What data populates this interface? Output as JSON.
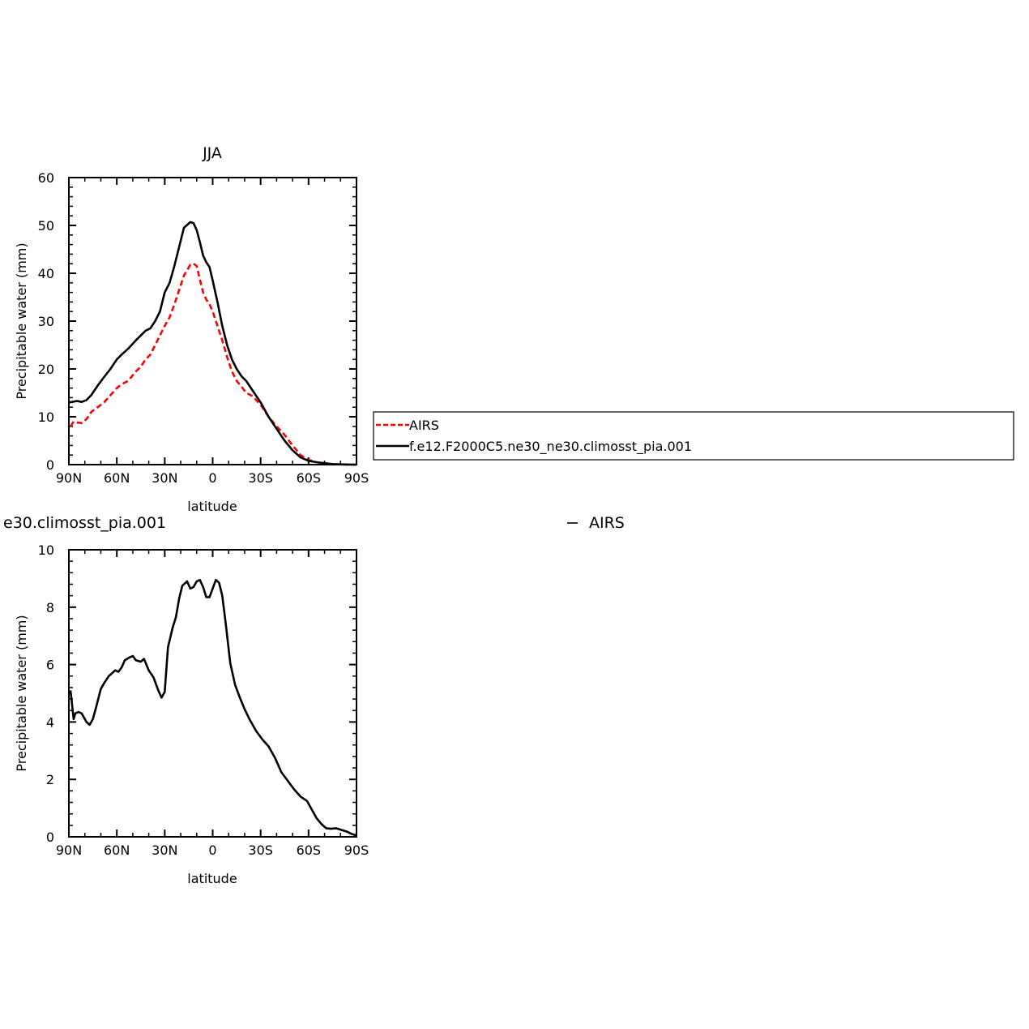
{
  "chart_data": [
    {
      "type": "line",
      "title": "JJA",
      "xlabel": "latitude",
      "ylabel": "Precipitable water (mm)",
      "xlim": [
        90,
        -90
      ],
      "ylim": [
        0,
        60
      ],
      "xticks": [
        90,
        60,
        30,
        0,
        -30,
        -60,
        -90
      ],
      "xtick_labels": [
        "90N",
        "60N",
        "30N",
        "0",
        "30S",
        "60S",
        "90S"
      ],
      "yticks": [
        0,
        10,
        20,
        30,
        40,
        50,
        60
      ],
      "ytick_labels": [
        "0",
        "10",
        "20",
        "30",
        "40",
        "50",
        "60"
      ],
      "legend_position": "right",
      "series": [
        {
          "name": "AIRS",
          "color": "#ff0000",
          "dash": "dashed",
          "x": [
            89,
            87,
            85,
            82,
            79,
            76,
            72,
            68,
            64,
            60,
            57,
            53,
            48,
            45,
            42,
            39,
            36,
            33,
            30,
            27,
            24,
            21,
            18,
            14,
            12,
            10,
            8,
            6,
            4,
            2,
            0,
            -3,
            -6,
            -9,
            -12,
            -15,
            -18,
            -21,
            -25,
            -30,
            -35,
            -40,
            -45,
            -50,
            -55,
            -60,
            -65,
            -70,
            -75,
            -80,
            -85,
            -90
          ],
          "y": [
            8,
            9,
            8.8,
            8.7,
            9.5,
            11,
            12,
            13,
            14.5,
            16,
            16.8,
            17.5,
            19.5,
            20.5,
            22,
            23,
            25,
            27,
            29,
            30.8,
            33.5,
            36.5,
            39.5,
            41.8,
            42,
            41.5,
            38.7,
            36,
            34.5,
            33.5,
            32,
            29,
            26,
            22.5,
            19.5,
            17.5,
            16.3,
            15,
            14.3,
            12.5,
            10,
            8,
            6.2,
            4,
            2,
            1,
            0.5,
            0.2,
            0.1,
            0.05,
            0,
            0
          ]
        },
        {
          "name": "f.e12.F2000C5.ne30_ne30.climosst_pia.001",
          "color": "#000000",
          "dash": "solid",
          "x": [
            90,
            88,
            85,
            82,
            79,
            76,
            72,
            68,
            64,
            60,
            57,
            53,
            48,
            45,
            42,
            39,
            36,
            33,
            30,
            27,
            24,
            21,
            18,
            14,
            12,
            10,
            8,
            6,
            4,
            2,
            0,
            -3,
            -6,
            -9,
            -12,
            -15,
            -18,
            -21,
            -25,
            -30,
            -35,
            -40,
            -45,
            -50,
            -55,
            -60,
            -65,
            -70,
            -75,
            -80,
            -85,
            -90
          ],
          "y": [
            13,
            13.1,
            13.3,
            13.1,
            13.5,
            14.5,
            16.5,
            18.3,
            20,
            22,
            23,
            24.2,
            26,
            27,
            28,
            28.5,
            30,
            32,
            36,
            38,
            41.5,
            45.5,
            49.5,
            50.7,
            50.5,
            49,
            46.5,
            43.7,
            42.3,
            41.3,
            38.5,
            34,
            29,
            25,
            22,
            20,
            18.5,
            17.5,
            15.5,
            13,
            10,
            7.5,
            5,
            3,
            1.5,
            0.8,
            0.5,
            0.3,
            0.1,
            0.05,
            0.02,
            0
          ]
        }
      ]
    },
    {
      "type": "line",
      "title": "",
      "partial_title": "e30.climosst_pia.001",
      "partial_legend": "AIRS",
      "xlabel": "latitude",
      "ylabel": "Precipitable water (mm)",
      "xlim": [
        90,
        -90
      ],
      "ylim": [
        0,
        10
      ],
      "xticks": [
        90,
        60,
        30,
        0,
        -30,
        -60,
        -90
      ],
      "xtick_labels": [
        "90N",
        "60N",
        "30N",
        "0",
        "30S",
        "60S",
        "90S"
      ],
      "yticks": [
        0,
        2,
        4,
        6,
        8,
        10
      ],
      "ytick_labels": [
        "0",
        "2",
        "4",
        "6",
        "8",
        "10"
      ],
      "series": [
        {
          "color": "#000000",
          "dash": "solid",
          "x": [
            89,
            87,
            86,
            84,
            82,
            79,
            77,
            75,
            73,
            70,
            68,
            65,
            61,
            59,
            57,
            55,
            52,
            50,
            48,
            45,
            43,
            40,
            37,
            34,
            32,
            30,
            28,
            25,
            23,
            21,
            19,
            16,
            14,
            12,
            10,
            8,
            6,
            4,
            2,
            0,
            -2,
            -4,
            -6,
            -8,
            -11,
            -14,
            -17,
            -20,
            -23,
            -27,
            -31,
            -35,
            -39,
            -43,
            -47,
            -51,
            -55,
            -59,
            -62,
            -65,
            -68,
            -71,
            -74,
            -77,
            -80,
            -84,
            -87,
            -90
          ],
          "y": [
            5.1,
            4.1,
            4.3,
            4.35,
            4.3,
            4,
            3.9,
            4.1,
            4.5,
            5.15,
            5.35,
            5.6,
            5.8,
            5.75,
            5.9,
            6.15,
            6.25,
            6.3,
            6.15,
            6.1,
            6.2,
            5.8,
            5.55,
            5.1,
            4.85,
            5.05,
            6.6,
            7.3,
            7.65,
            8.3,
            8.75,
            8.9,
            8.65,
            8.7,
            8.9,
            8.95,
            8.7,
            8.35,
            8.35,
            8.65,
            8.95,
            8.85,
            8.4,
            7.5,
            6.05,
            5.3,
            4.85,
            4.45,
            4.1,
            3.7,
            3.4,
            3.15,
            2.75,
            2.25,
            1.95,
            1.65,
            1.4,
            1.25,
            0.95,
            0.65,
            0.45,
            0.3,
            0.28,
            0.3,
            0.25,
            0.18,
            0.1,
            0.05
          ]
        }
      ]
    }
  ],
  "legend_entries": [
    {
      "label": "AIRS",
      "color": "#ff0000",
      "dash": "dashed"
    },
    {
      "label": "f.e12.F2000C5.ne30_ne30.climosst_pia.001",
      "color": "#000000",
      "dash": "solid"
    }
  ]
}
